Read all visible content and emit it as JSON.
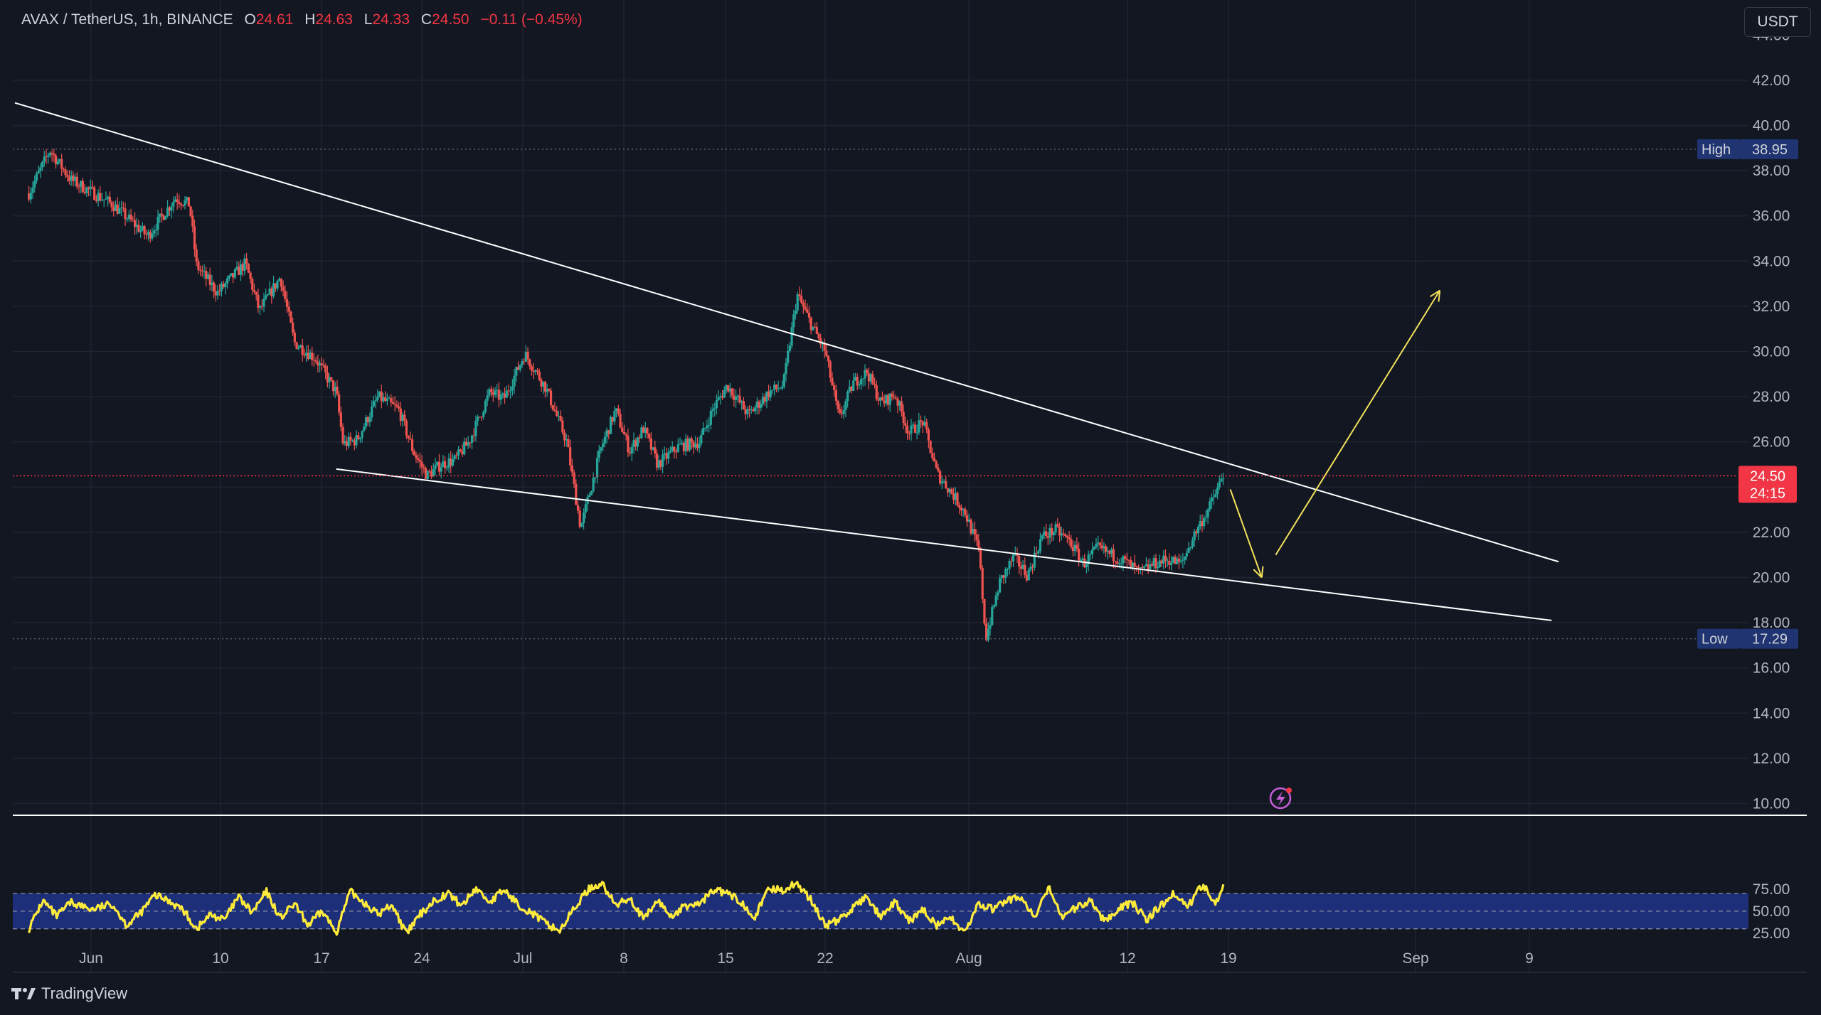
{
  "header": {
    "symbol": "AVAX / TetherUS, 1h, BINANCE",
    "open_label": "O",
    "open": "24.61",
    "high_label": "H",
    "high": "24.63",
    "low_label": "L",
    "low": "24.33",
    "close_label": "C",
    "close": "24.50",
    "change": "−0.11 (−0.45%)"
  },
  "currency_button": "USDT",
  "branding": "TradingView",
  "colors": {
    "up": "#26a69a",
    "down": "#ef5350",
    "price": "#f23645",
    "rsi": "#ffeb3b",
    "band": "#1e2f7a",
    "trend": "#ffffff",
    "arrow": "#f2e15a"
  },
  "chart_data": {
    "type": "candlestick",
    "x_tick_labels": [
      "Jun",
      "10",
      "17",
      "24",
      "Jul",
      "8",
      "15",
      "22",
      "Aug",
      "12",
      "19",
      "Sep",
      "9"
    ],
    "y_tick_labels": [
      "10.00",
      "12.00",
      "14.00",
      "16.00",
      "18.00",
      "20.00",
      "22.00",
      "24.00",
      "26.00",
      "28.00",
      "30.00",
      "32.00",
      "34.00",
      "36.00",
      "38.00",
      "40.00",
      "42.00"
    ],
    "ylim": [
      10,
      44
    ],
    "markers": {
      "high": {
        "label": "High",
        "value": "38.95"
      },
      "low": {
        "label": "Low",
        "value": "17.29"
      },
      "last_price": {
        "value": "24.50",
        "countdown": "24:15"
      }
    },
    "price_keypoints": [
      [
        0,
        37.0
      ],
      [
        3,
        38.9
      ],
      [
        6,
        37.6
      ],
      [
        12,
        36.5
      ],
      [
        17,
        35.1
      ],
      [
        21,
        36.8
      ],
      [
        23,
        36.5
      ],
      [
        24,
        33.8
      ],
      [
        27,
        32.6
      ],
      [
        31,
        33.9
      ],
      [
        33,
        31.8
      ],
      [
        36,
        33.3
      ],
      [
        38,
        30.4
      ],
      [
        41,
        29.7
      ],
      [
        44,
        28.2
      ],
      [
        45,
        25.9
      ],
      [
        47,
        26.1
      ],
      [
        50,
        28.0
      ],
      [
        53,
        27.4
      ],
      [
        55,
        25.6
      ],
      [
        57,
        24.5
      ],
      [
        59,
        25.0
      ],
      [
        61,
        25.2
      ],
      [
        63,
        26.0
      ],
      [
        66,
        28.2
      ],
      [
        68,
        27.9
      ],
      [
        71,
        29.9
      ],
      [
        74,
        28.4
      ],
      [
        77,
        26.0
      ],
      [
        79,
        22.2
      ],
      [
        82,
        25.8
      ],
      [
        84,
        27.4
      ],
      [
        86,
        25.6
      ],
      [
        88,
        26.6
      ],
      [
        90,
        25.0
      ],
      [
        93,
        25.8
      ],
      [
        96,
        26.0
      ],
      [
        98,
        27.5
      ],
      [
        100,
        28.5
      ],
      [
        103,
        27.2
      ],
      [
        106,
        28.2
      ],
      [
        108,
        28.5
      ],
      [
        110,
        32.5
      ],
      [
        112,
        31.2
      ],
      [
        114,
        30.0
      ],
      [
        116,
        27.0
      ],
      [
        118,
        28.6
      ],
      [
        120,
        29.1
      ],
      [
        122,
        27.7
      ],
      [
        124,
        28.1
      ],
      [
        126,
        26.4
      ],
      [
        128,
        26.9
      ],
      [
        130,
        24.6
      ],
      [
        132,
        23.8
      ],
      [
        134,
        22.9
      ],
      [
        136,
        21.2
      ],
      [
        137,
        17.3
      ],
      [
        139,
        19.8
      ],
      [
        141,
        20.9
      ],
      [
        143,
        20.1
      ],
      [
        145,
        21.8
      ],
      [
        147,
        22.1
      ],
      [
        149,
        21.6
      ],
      [
        151,
        20.6
      ],
      [
        153,
        21.3
      ],
      [
        155,
        21.0
      ],
      [
        157,
        20.7
      ],
      [
        159,
        20.2
      ],
      [
        161,
        20.6
      ],
      [
        163,
        20.8
      ],
      [
        165,
        20.6
      ],
      [
        167,
        22.0
      ],
      [
        169,
        23.1
      ],
      [
        171,
        24.5
      ]
    ],
    "trendlines": {
      "upper": [
        [
          -2,
          41.0
        ],
        [
          219,
          20.7
        ]
      ],
      "lower": [
        [
          44,
          24.8
        ],
        [
          218,
          18.1
        ]
      ]
    },
    "projection_arrows": [
      [
        [
          172,
          23.9
        ],
        [
          176.5,
          20.0
        ]
      ],
      [
        [
          178.5,
          21.0
        ],
        [
          202,
          32.7
        ]
      ]
    ],
    "rsi": {
      "y_tick_labels": [
        "25.00",
        "50.00",
        "75.00"
      ],
      "ylim": [
        20,
        85
      ],
      "band": [
        30,
        70
      ],
      "midline": 50,
      "keypoints": [
        [
          0,
          30
        ],
        [
          2,
          62
        ],
        [
          4,
          44
        ],
        [
          6,
          60
        ],
        [
          9,
          52
        ],
        [
          12,
          58
        ],
        [
          14,
          34
        ],
        [
          16,
          48
        ],
        [
          18,
          68
        ],
        [
          20,
          62
        ],
        [
          22,
          52
        ],
        [
          24,
          30
        ],
        [
          26,
          46
        ],
        [
          28,
          40
        ],
        [
          30,
          66
        ],
        [
          32,
          48
        ],
        [
          34,
          72
        ],
        [
          36,
          42
        ],
        [
          38,
          58
        ],
        [
          40,
          34
        ],
        [
          42,
          50
        ],
        [
          44,
          26
        ],
        [
          46,
          72
        ],
        [
          48,
          60
        ],
        [
          50,
          46
        ],
        [
          52,
          58
        ],
        [
          54,
          24
        ],
        [
          56,
          46
        ],
        [
          58,
          62
        ],
        [
          60,
          70
        ],
        [
          62,
          56
        ],
        [
          64,
          76
        ],
        [
          66,
          60
        ],
        [
          68,
          74
        ],
        [
          70,
          58
        ],
        [
          72,
          48
        ],
        [
          74,
          36
        ],
        [
          76,
          28
        ],
        [
          78,
          52
        ],
        [
          80,
          74
        ],
        [
          82,
          82
        ],
        [
          84,
          56
        ],
        [
          86,
          66
        ],
        [
          88,
          40
        ],
        [
          90,
          62
        ],
        [
          92,
          44
        ],
        [
          94,
          56
        ],
        [
          96,
          58
        ],
        [
          98,
          74
        ],
        [
          100,
          70
        ],
        [
          102,
          60
        ],
        [
          104,
          44
        ],
        [
          106,
          76
        ],
        [
          108,
          74
        ],
        [
          110,
          82
        ],
        [
          112,
          62
        ],
        [
          114,
          34
        ],
        [
          116,
          40
        ],
        [
          118,
          54
        ],
        [
          120,
          66
        ],
        [
          122,
          42
        ],
        [
          124,
          60
        ],
        [
          126,
          38
        ],
        [
          128,
          52
        ],
        [
          130,
          34
        ],
        [
          132,
          42
        ],
        [
          134,
          26
        ],
        [
          136,
          58
        ],
        [
          138,
          52
        ],
        [
          140,
          62
        ],
        [
          142,
          66
        ],
        [
          144,
          42
        ],
        [
          146,
          76
        ],
        [
          148,
          44
        ],
        [
          150,
          54
        ],
        [
          152,
          62
        ],
        [
          154,
          38
        ],
        [
          156,
          54
        ],
        [
          158,
          60
        ],
        [
          160,
          40
        ],
        [
          162,
          56
        ],
        [
          164,
          70
        ],
        [
          166,
          56
        ],
        [
          168,
          80
        ],
        [
          170,
          60
        ],
        [
          171,
          82
        ]
      ]
    }
  }
}
